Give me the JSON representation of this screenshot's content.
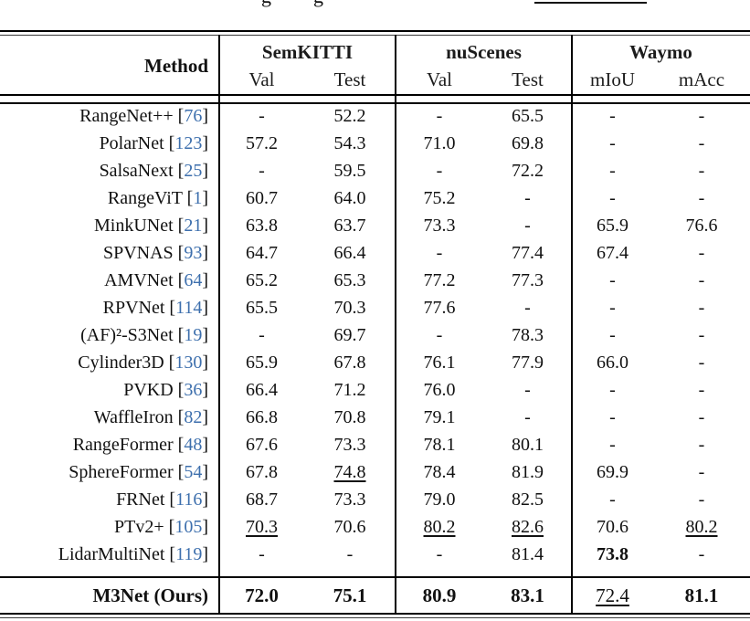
{
  "clipped_caption": {
    "descender_glyph_left": "g",
    "descender_glyph_right": "g",
    "underline_present": true
  },
  "colors": {
    "citation_blue": "#3d6fad",
    "text": "#111111",
    "rule": "#000000"
  },
  "table": {
    "header": {
      "method": "Method",
      "groups": [
        {
          "label": "SemKITTI"
        },
        {
          "label": "nuScenes"
        },
        {
          "label": "Waymo"
        }
      ],
      "subcolumns": [
        "Val",
        "Test",
        "Val",
        "Test",
        "mIoU",
        "mAcc"
      ]
    },
    "rows": [
      {
        "method": "RangeNet++",
        "ref": "76",
        "values": [
          {
            "v": "-"
          },
          {
            "v": "52.2"
          },
          {
            "v": "-"
          },
          {
            "v": "65.5"
          },
          {
            "v": "-"
          },
          {
            "v": "-"
          }
        ]
      },
      {
        "method": "PolarNet",
        "ref": "123",
        "values": [
          {
            "v": "57.2"
          },
          {
            "v": "54.3"
          },
          {
            "v": "71.0"
          },
          {
            "v": "69.8"
          },
          {
            "v": "-"
          },
          {
            "v": "-"
          }
        ]
      },
      {
        "method": "SalsaNext",
        "ref": "25",
        "values": [
          {
            "v": "-"
          },
          {
            "v": "59.5"
          },
          {
            "v": "-"
          },
          {
            "v": "72.2"
          },
          {
            "v": "-"
          },
          {
            "v": "-"
          }
        ]
      },
      {
        "method": "RangeViT",
        "ref": "1",
        "values": [
          {
            "v": "60.7"
          },
          {
            "v": "64.0"
          },
          {
            "v": "75.2"
          },
          {
            "v": "-"
          },
          {
            "v": "-"
          },
          {
            "v": "-"
          }
        ]
      },
      {
        "method": "MinkUNet",
        "ref": "21",
        "values": [
          {
            "v": "63.8"
          },
          {
            "v": "63.7"
          },
          {
            "v": "73.3"
          },
          {
            "v": "-"
          },
          {
            "v": "65.9"
          },
          {
            "v": "76.6"
          }
        ]
      },
      {
        "method": "SPVNAS",
        "ref": "93",
        "values": [
          {
            "v": "64.7"
          },
          {
            "v": "66.4"
          },
          {
            "v": "-"
          },
          {
            "v": "77.4"
          },
          {
            "v": "67.4"
          },
          {
            "v": "-"
          }
        ]
      },
      {
        "method": "AMVNet",
        "ref": "64",
        "values": [
          {
            "v": "65.2"
          },
          {
            "v": "65.3"
          },
          {
            "v": "77.2"
          },
          {
            "v": "77.3"
          },
          {
            "v": "-"
          },
          {
            "v": "-"
          }
        ]
      },
      {
        "method": "RPVNet",
        "ref": "114",
        "values": [
          {
            "v": "65.5"
          },
          {
            "v": "70.3"
          },
          {
            "v": "77.6"
          },
          {
            "v": "-"
          },
          {
            "v": "-"
          },
          {
            "v": "-"
          }
        ]
      },
      {
        "method": "(AF)²-S3Net",
        "ref": "19",
        "values": [
          {
            "v": "-"
          },
          {
            "v": "69.7"
          },
          {
            "v": "-"
          },
          {
            "v": "78.3"
          },
          {
            "v": "-"
          },
          {
            "v": "-"
          }
        ]
      },
      {
        "method": "Cylinder3D",
        "ref": "130",
        "values": [
          {
            "v": "65.9"
          },
          {
            "v": "67.8"
          },
          {
            "v": "76.1"
          },
          {
            "v": "77.9"
          },
          {
            "v": "66.0"
          },
          {
            "v": "-"
          }
        ]
      },
      {
        "method": "PVKD",
        "ref": "36",
        "values": [
          {
            "v": "66.4"
          },
          {
            "v": "71.2"
          },
          {
            "v": "76.0"
          },
          {
            "v": "-"
          },
          {
            "v": "-"
          },
          {
            "v": "-"
          }
        ]
      },
      {
        "method": "WaffleIron",
        "ref": "82",
        "values": [
          {
            "v": "66.8"
          },
          {
            "v": "70.8"
          },
          {
            "v": "79.1"
          },
          {
            "v": "-"
          },
          {
            "v": "-"
          },
          {
            "v": "-"
          }
        ]
      },
      {
        "method": "RangeFormer",
        "ref": "48",
        "values": [
          {
            "v": "67.6"
          },
          {
            "v": "73.3"
          },
          {
            "v": "78.1"
          },
          {
            "v": "80.1"
          },
          {
            "v": "-"
          },
          {
            "v": "-"
          }
        ]
      },
      {
        "method": "SphereFormer",
        "ref": "54",
        "values": [
          {
            "v": "67.8"
          },
          {
            "v": "74.8",
            "u": true
          },
          {
            "v": "78.4"
          },
          {
            "v": "81.9"
          },
          {
            "v": "69.9"
          },
          {
            "v": "-"
          }
        ]
      },
      {
        "method": "FRNet",
        "ref": "116",
        "values": [
          {
            "v": "68.7"
          },
          {
            "v": "73.3"
          },
          {
            "v": "79.0"
          },
          {
            "v": "82.5"
          },
          {
            "v": "-"
          },
          {
            "v": "-"
          }
        ]
      },
      {
        "method": "PTv2+",
        "ref": "105",
        "values": [
          {
            "v": "70.3",
            "u": true
          },
          {
            "v": "70.6"
          },
          {
            "v": "80.2",
            "u": true
          },
          {
            "v": "82.6",
            "u": true
          },
          {
            "v": "70.6"
          },
          {
            "v": "80.2",
            "u": true
          }
        ]
      },
      {
        "method": "LidarMultiNet",
        "ref": "119",
        "values": [
          {
            "v": "-"
          },
          {
            "v": "-"
          },
          {
            "v": "-"
          },
          {
            "v": "81.4"
          },
          {
            "v": "73.8",
            "b": true
          },
          {
            "v": "-"
          }
        ]
      }
    ],
    "final_row": {
      "method": "M3Net (Ours)",
      "values": [
        {
          "v": "72.0",
          "b": true
        },
        {
          "v": "75.1",
          "b": true
        },
        {
          "v": "80.9",
          "b": true
        },
        {
          "v": "83.1",
          "b": true
        },
        {
          "v": "72.4",
          "u": true
        },
        {
          "v": "81.1",
          "b": true
        }
      ]
    }
  }
}
